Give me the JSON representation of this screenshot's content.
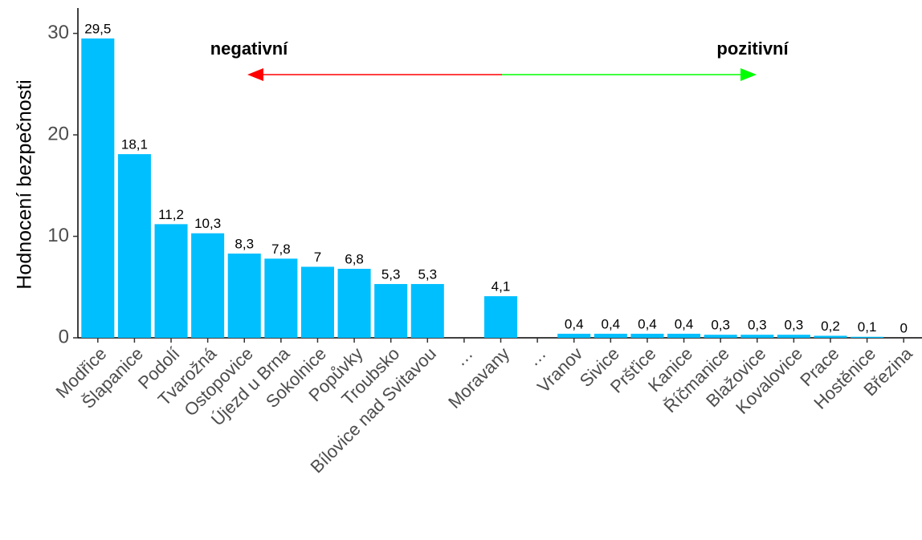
{
  "chart_data": {
    "type": "bar",
    "y_label": "Hodnocení bezpečnosti",
    "annotations": [
      "negativní",
      "pozitivní"
    ],
    "categories": [
      "Modřice",
      "Šlapanice",
      "Podolí",
      "Tvarožná",
      "Ostopovice",
      "Újezd u Brna",
      "Sokolnice",
      "Popůvky",
      "Troubsko",
      "Bílovice nad Svitavou",
      "…",
      "Moravany",
      "…",
      "Vranov",
      "Sivice",
      "Pršťice",
      "Kanice",
      "Říčmanice",
      "Blažovice",
      "Kovalovice",
      "Prace",
      "Hostěnice",
      "Březina"
    ],
    "values": [
      29.5,
      18.1,
      11.2,
      10.3,
      8.3,
      7.8,
      7,
      6.8,
      5.3,
      5.3,
      null,
      4.1,
      null,
      0.4,
      0.4,
      0.4,
      0.4,
      0.3,
      0.3,
      0.3,
      0.2,
      0.1,
      0
    ],
    "value_labels": [
      "29,5",
      "18,1",
      "11,2",
      "10,3",
      "8,3",
      "7,8",
      "7",
      "6,8",
      "5,3",
      "5,3",
      null,
      "4,1",
      null,
      "0,4",
      "0,4",
      "0,4",
      "0,4",
      "0,3",
      "0,3",
      "0,3",
      "0,2",
      "0,1",
      "0"
    ],
    "color": "#00bfff",
    "ylim": [
      0,
      32.5
    ],
    "yticks": [
      0,
      10,
      20,
      30
    ],
    "grid": false
  }
}
